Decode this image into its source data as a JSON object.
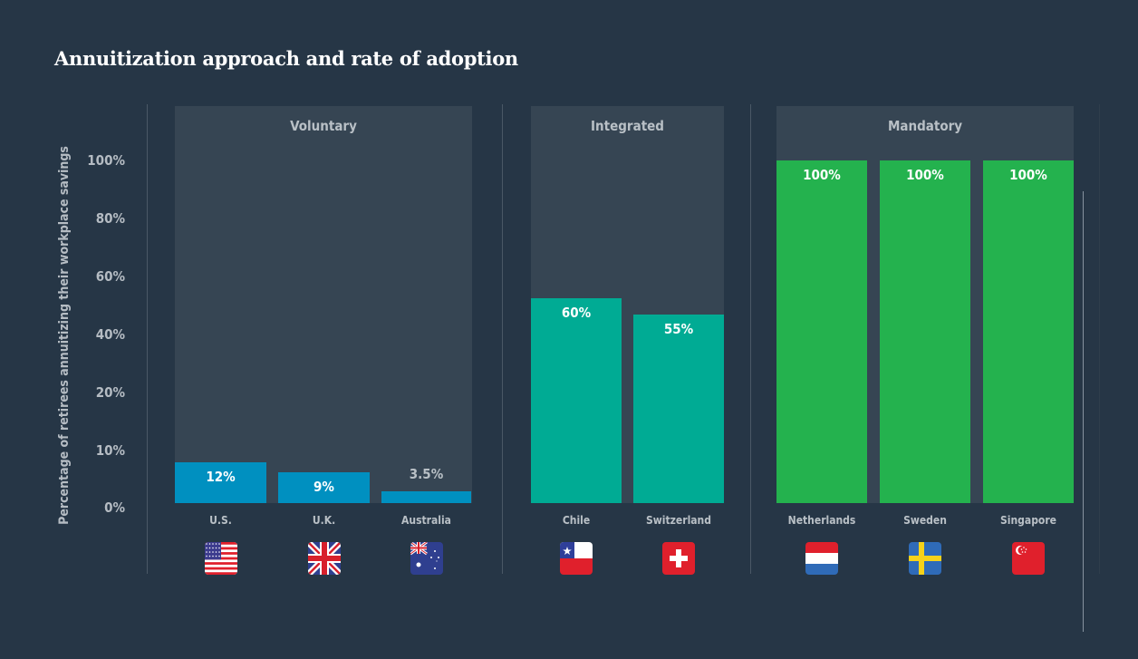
{
  "chart_data": {
    "type": "bar",
    "title": "Annuitization approach and rate of adoption",
    "ylabel": "Percentage of retirees annuitizing their workplace savings",
    "xlabel": "",
    "yticks": [
      "100%",
      "80%",
      "60%",
      "40%",
      "20%",
      "10%",
      "0%"
    ],
    "ytick_values": [
      100,
      80,
      60,
      40,
      20,
      10,
      0
    ],
    "ylim": [
      0,
      100
    ],
    "grid": false,
    "groups": [
      {
        "name": "Voluntary",
        "color": "#0090c0",
        "countries": [
          {
            "name": "U.S.",
            "value": 12,
            "label": "12%",
            "flag": "us-flag"
          },
          {
            "name": "U.K.",
            "value": 9,
            "label": "9%",
            "flag": "uk-flag"
          },
          {
            "name": "Australia",
            "value": 3.5,
            "label": "3.5%",
            "flag": "australia-flag"
          }
        ]
      },
      {
        "name": "Integrated",
        "color": "#00ab94",
        "countries": [
          {
            "name": "Chile",
            "value": 60,
            "label": "60%",
            "flag": "chile-flag"
          },
          {
            "name": "Switzerland",
            "value": 55,
            "label": "55%",
            "flag": "switzerland-flag"
          }
        ]
      },
      {
        "name": "Mandatory",
        "color": "#24b24e",
        "countries": [
          {
            "name": "Netherlands",
            "value": 100,
            "label": "100%",
            "flag": "netherlands-flag"
          },
          {
            "name": "Sweden",
            "value": 100,
            "label": "100%",
            "flag": "sweden-flag"
          },
          {
            "name": "Singapore",
            "value": 100,
            "label": "100%",
            "flag": "singapore-flag"
          }
        ]
      }
    ]
  }
}
